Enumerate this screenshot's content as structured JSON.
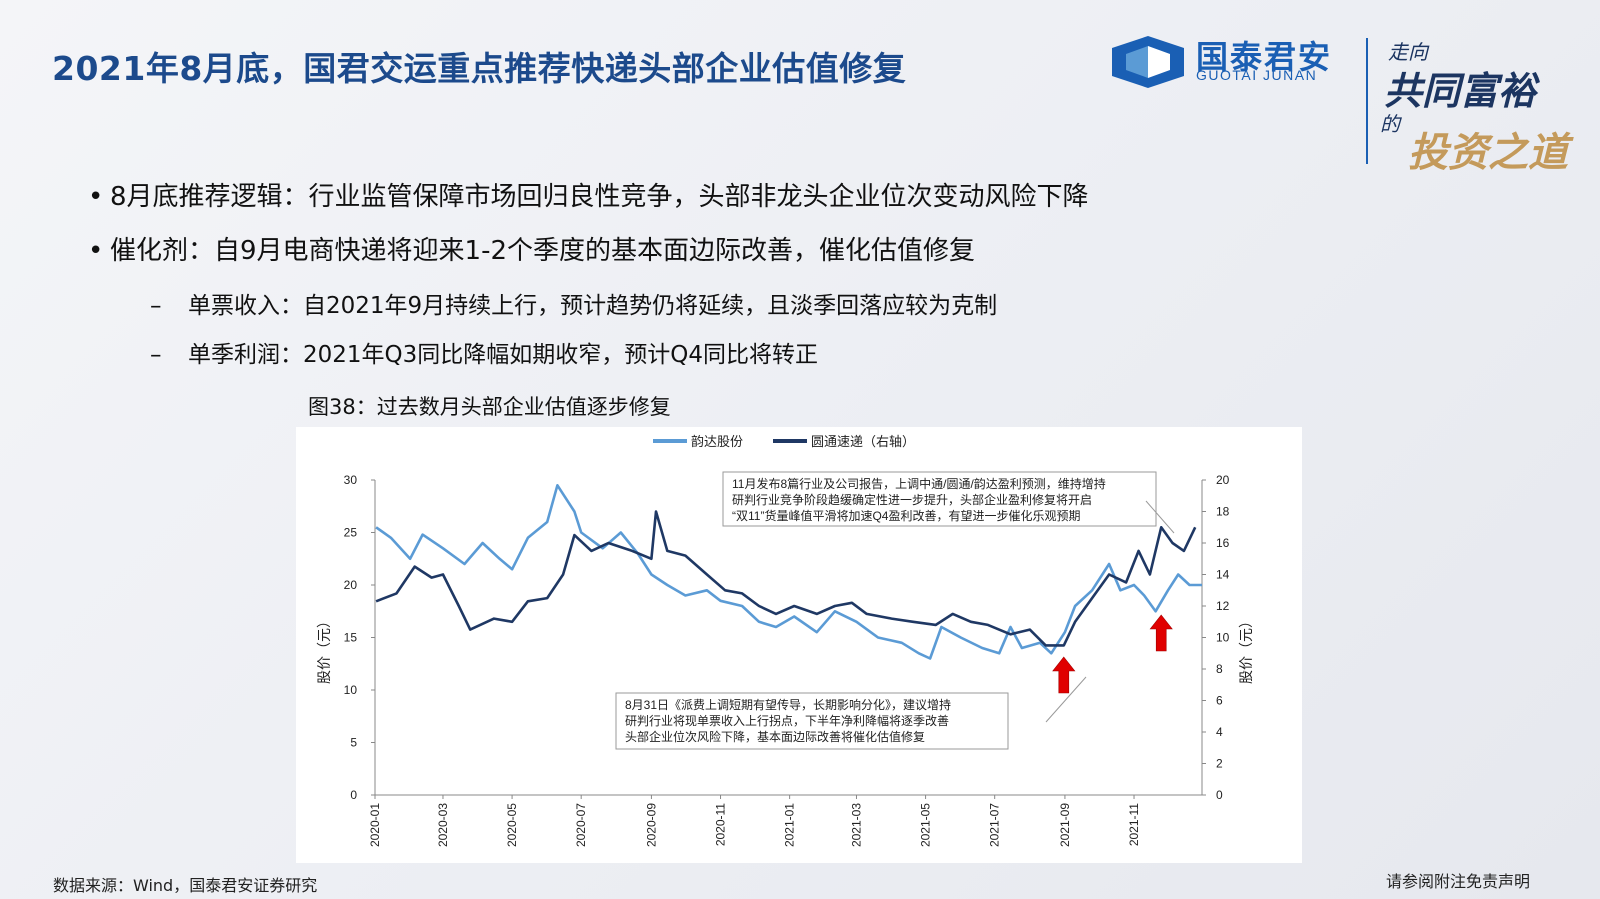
{
  "slide": {
    "title": "2021年8月底，国君交运重点推荐快递头部企业估值修复",
    "bullets": [
      "8月底推荐逻辑：行业监管保障市场回归良性竞争，头部非龙头企业位次变动风险下降",
      "催化剂：自9月电商快递将迎来1-2个季度的基本面边际改善，催化估值修复"
    ],
    "sub_bullets": [
      "单票收入：自2021年9月持续上行，预计趋势仍将延续，且淡季回落应较为克制",
      "单季利润：2021年Q3同比降幅如期收窄，预计Q4同比将转正"
    ],
    "figure_caption": "图38：过去数月头部企业估值逐步修复",
    "source": "数据来源：Wind，国泰君安证券研究",
    "disclaimer": "请参阅附注免责声明"
  },
  "logo": {
    "name_cn": "国泰君安",
    "name_en": "GUOTAI JUNAN",
    "slogan_line1": "走向",
    "slogan_line2": "共同富裕",
    "slogan_line3": "的",
    "slogan_line4": "投资之道",
    "brand_color": "#1a5fb4"
  },
  "chart_data": {
    "type": "line",
    "title": "",
    "x_ticks": [
      "2020-01",
      "2020-03",
      "2020-05",
      "2020-07",
      "2020-09",
      "2020-11",
      "2021-01",
      "2021-03",
      "2021-05",
      "2021-07",
      "2021-09",
      "2021-11"
    ],
    "ylabel_left": "股价（元）",
    "ylabel_right": "股价（元）",
    "ylim_left": [
      0,
      30
    ],
    "ylim_right": [
      0,
      20
    ],
    "yticks_left": [
      "0",
      "5",
      "10",
      "15",
      "20",
      "25",
      "30"
    ],
    "yticks_right": [
      "0",
      "2",
      "4",
      "6",
      "8",
      "10",
      "12",
      "14",
      "16",
      "18",
      "20"
    ],
    "legend_position": "top-center",
    "series": [
      {
        "name": "韵达股份",
        "axis": "left",
        "color": "#5b9bd5",
        "points": [
          [
            "2020-01-02",
            25.5
          ],
          [
            "2020-01-15",
            24.5
          ],
          [
            "2020-02-01",
            22.5
          ],
          [
            "2020-02-12",
            24.8
          ],
          [
            "2020-03-01",
            23.5
          ],
          [
            "2020-03-20",
            22.0
          ],
          [
            "2020-04-05",
            24.0
          ],
          [
            "2020-04-20",
            22.5
          ],
          [
            "2020-05-01",
            21.5
          ],
          [
            "2020-05-15",
            24.5
          ],
          [
            "2020-06-01",
            26.0
          ],
          [
            "2020-06-10",
            29.5
          ],
          [
            "2020-06-25",
            27.0
          ],
          [
            "2020-07-01",
            25.0
          ],
          [
            "2020-07-20",
            23.5
          ],
          [
            "2020-08-05",
            25.0
          ],
          [
            "2020-08-20",
            23.0
          ],
          [
            "2020-09-01",
            21.0
          ],
          [
            "2020-09-15",
            20.0
          ],
          [
            "2020-10-01",
            19.0
          ],
          [
            "2020-10-20",
            19.5
          ],
          [
            "2020-11-01",
            18.5
          ],
          [
            "2020-11-20",
            18.0
          ],
          [
            "2020-12-05",
            16.5
          ],
          [
            "2020-12-20",
            16.0
          ],
          [
            "2021-01-05",
            17.0
          ],
          [
            "2021-01-25",
            15.5
          ],
          [
            "2021-02-10",
            17.5
          ],
          [
            "2021-03-01",
            16.5
          ],
          [
            "2021-03-20",
            15.0
          ],
          [
            "2021-04-10",
            14.5
          ],
          [
            "2021-04-25",
            13.5
          ],
          [
            "2021-05-05",
            13.0
          ],
          [
            "2021-05-15",
            16.0
          ],
          [
            "2021-06-01",
            15.0
          ],
          [
            "2021-06-20",
            14.0
          ],
          [
            "2021-07-05",
            13.5
          ],
          [
            "2021-07-15",
            16.0
          ],
          [
            "2021-07-25",
            14.0
          ],
          [
            "2021-08-10",
            14.5
          ],
          [
            "2021-08-20",
            13.5
          ],
          [
            "2021-09-01",
            15.5
          ],
          [
            "2021-09-10",
            18.0
          ],
          [
            "2021-09-25",
            19.5
          ],
          [
            "2021-10-10",
            22.0
          ],
          [
            "2021-10-20",
            19.5
          ],
          [
            "2021-11-01",
            20.0
          ],
          [
            "2021-11-10",
            19.0
          ],
          [
            "2021-11-20",
            17.5
          ],
          [
            "2021-12-01",
            19.5
          ],
          [
            "2021-12-10",
            21.0
          ],
          [
            "2021-12-20",
            20.0
          ],
          [
            "2021-12-31",
            20.0
          ]
        ]
      },
      {
        "name": "圆通速递（右轴）",
        "axis": "right",
        "color": "#1f3864",
        "points": [
          [
            "2020-01-02",
            12.3
          ],
          [
            "2020-01-20",
            12.8
          ],
          [
            "2020-02-05",
            14.5
          ],
          [
            "2020-02-20",
            13.8
          ],
          [
            "2020-03-01",
            14.0
          ],
          [
            "2020-03-15",
            12.0
          ],
          [
            "2020-03-25",
            10.5
          ],
          [
            "2020-04-15",
            11.2
          ],
          [
            "2020-05-01",
            11.0
          ],
          [
            "2020-05-15",
            12.3
          ],
          [
            "2020-06-01",
            12.5
          ],
          [
            "2020-06-15",
            14.0
          ],
          [
            "2020-06-25",
            16.5
          ],
          [
            "2020-07-10",
            15.5
          ],
          [
            "2020-07-25",
            16.0
          ],
          [
            "2020-08-15",
            15.5
          ],
          [
            "2020-09-01",
            15.0
          ],
          [
            "2020-09-05",
            18.0
          ],
          [
            "2020-09-15",
            15.5
          ],
          [
            "2020-10-01",
            15.2
          ],
          [
            "2020-10-20",
            14.0
          ],
          [
            "2020-11-05",
            13.0
          ],
          [
            "2020-11-20",
            12.8
          ],
          [
            "2020-12-05",
            12.0
          ],
          [
            "2020-12-20",
            11.5
          ],
          [
            "2021-01-05",
            12.0
          ],
          [
            "2021-01-25",
            11.5
          ],
          [
            "2021-02-10",
            12.0
          ],
          [
            "2021-02-25",
            12.2
          ],
          [
            "2021-03-10",
            11.5
          ],
          [
            "2021-04-01",
            11.2
          ],
          [
            "2021-04-20",
            11.0
          ],
          [
            "2021-05-10",
            10.8
          ],
          [
            "2021-05-25",
            11.5
          ],
          [
            "2021-06-10",
            11.0
          ],
          [
            "2021-06-25",
            10.8
          ],
          [
            "2021-07-15",
            10.2
          ],
          [
            "2021-08-01",
            10.5
          ],
          [
            "2021-08-15",
            9.5
          ],
          [
            "2021-08-31",
            9.5
          ],
          [
            "2021-09-10",
            11.0
          ],
          [
            "2021-09-25",
            12.5
          ],
          [
            "2021-10-10",
            14.0
          ],
          [
            "2021-10-25",
            13.5
          ],
          [
            "2021-11-05",
            15.5
          ],
          [
            "2021-11-15",
            14.0
          ],
          [
            "2021-11-25",
            17.0
          ],
          [
            "2021-12-05",
            16.0
          ],
          [
            "2021-12-15",
            15.5
          ],
          [
            "2021-12-25",
            17.0
          ]
        ]
      }
    ],
    "annotations": [
      {
        "lines": [
          "11月发布8篇行业及公司报告，上调中通/圆通/韵达盈利预测，维持增持",
          "研判行业竞争阶段趋缓确定性进一步提升，头部企业盈利修复将开启",
          "“双11”货量峰值平滑将加速Q4盈利改善，有望进一步催化乐观预期"
        ]
      },
      {
        "lines": [
          "8月31日《派费上调短期有望传导，长期影响分化》，建议增持",
          "研判行业将现单票收入上行拐点，下半年净利降幅将逐季改善",
          "头部企业位次风险下降，基本面边际改善将催化估值修复"
        ]
      }
    ],
    "arrows": [
      {
        "date": "2021-08-31",
        "color": "#e00000"
      },
      {
        "date": "2021-11-25",
        "color": "#e00000"
      }
    ]
  }
}
